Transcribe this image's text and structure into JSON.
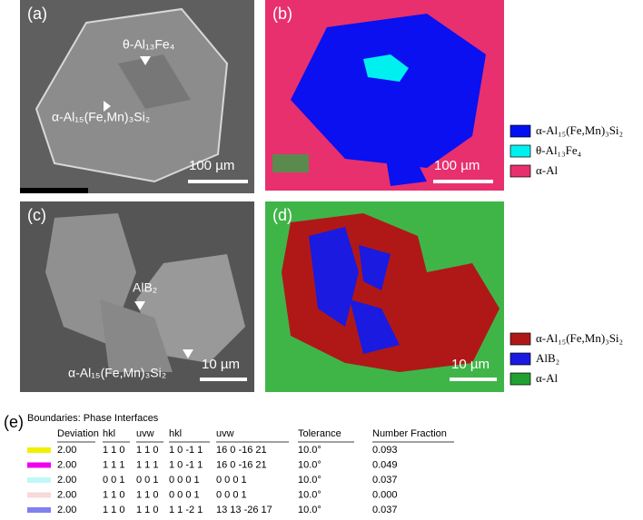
{
  "panels": [
    {
      "label": "(a)",
      "annotations": [
        "θ-Al₁₃Fe₄",
        "α-Al₁₅(Fe,Mn)₃Si₂"
      ],
      "scale_bar": "100 µm"
    },
    {
      "label": "(b)",
      "scale_bar": "100 µm"
    },
    {
      "label": "(c)",
      "annotations": [
        "AlB₂",
        "α-Al₁₅(Fe,Mn)₃Si₂"
      ],
      "scale_bar": "10 µm"
    },
    {
      "label": "(d)",
      "scale_bar": "10 µm"
    }
  ],
  "legends": [
    {
      "items": [
        {
          "label": "α-Al₁₅(Fe,Mn)₃Si₂",
          "color": "#0010f0"
        },
        {
          "label": "θ-Al₁₃Fe₄",
          "color": "#00f0f0"
        },
        {
          "label": "α-Al",
          "color": "#e8306e"
        }
      ]
    },
    {
      "items": [
        {
          "label": "α-Al₁₅(Fe,Mn)₃Si₂",
          "color": "#b01818"
        },
        {
          "label": "AlB₂",
          "color": "#1a1ae0"
        },
        {
          "label": "α-Al",
          "color": "#20a030"
        }
      ]
    }
  ],
  "table": {
    "label": "(e)",
    "title": "Boundaries: Phase Interfaces",
    "headers": [
      "Deviation",
      "hkl",
      "uvw",
      "hkl",
      "uvw",
      "Tolerance",
      "Number Fraction"
    ],
    "rows": [
      {
        "color": "#f0f000",
        "cells": [
          "2.00",
          "1 1 0",
          "1 1 0",
          "1 0 -1 1",
          "16 0 -16 21",
          "10.0°",
          "0.093"
        ]
      },
      {
        "color": "#f000f0",
        "cells": [
          "2.00",
          "1 1 1",
          "1 1 1",
          "1 0 -1 1",
          "16 0 -16 21",
          "10.0°",
          "0.049"
        ]
      },
      {
        "color": "#c0f8f8",
        "cells": [
          "2.00",
          "0 0 1",
          "0 0 1",
          "0 0 0 1",
          "0 0 0 1",
          "10.0°",
          "0.037"
        ]
      },
      {
        "color": "#f8d8d8",
        "cells": [
          "2.00",
          "1 1 0",
          "1 1 0",
          "0 0 0 1",
          "0 0 0 1",
          "10.0°",
          "0.000"
        ]
      },
      {
        "color": "#8080f0",
        "cells": [
          "2.00",
          "1 1 0",
          "1 1 0",
          "1 1 -2 1",
          "13 13 -26 17",
          "10.0°",
          "0.037"
        ]
      }
    ]
  }
}
